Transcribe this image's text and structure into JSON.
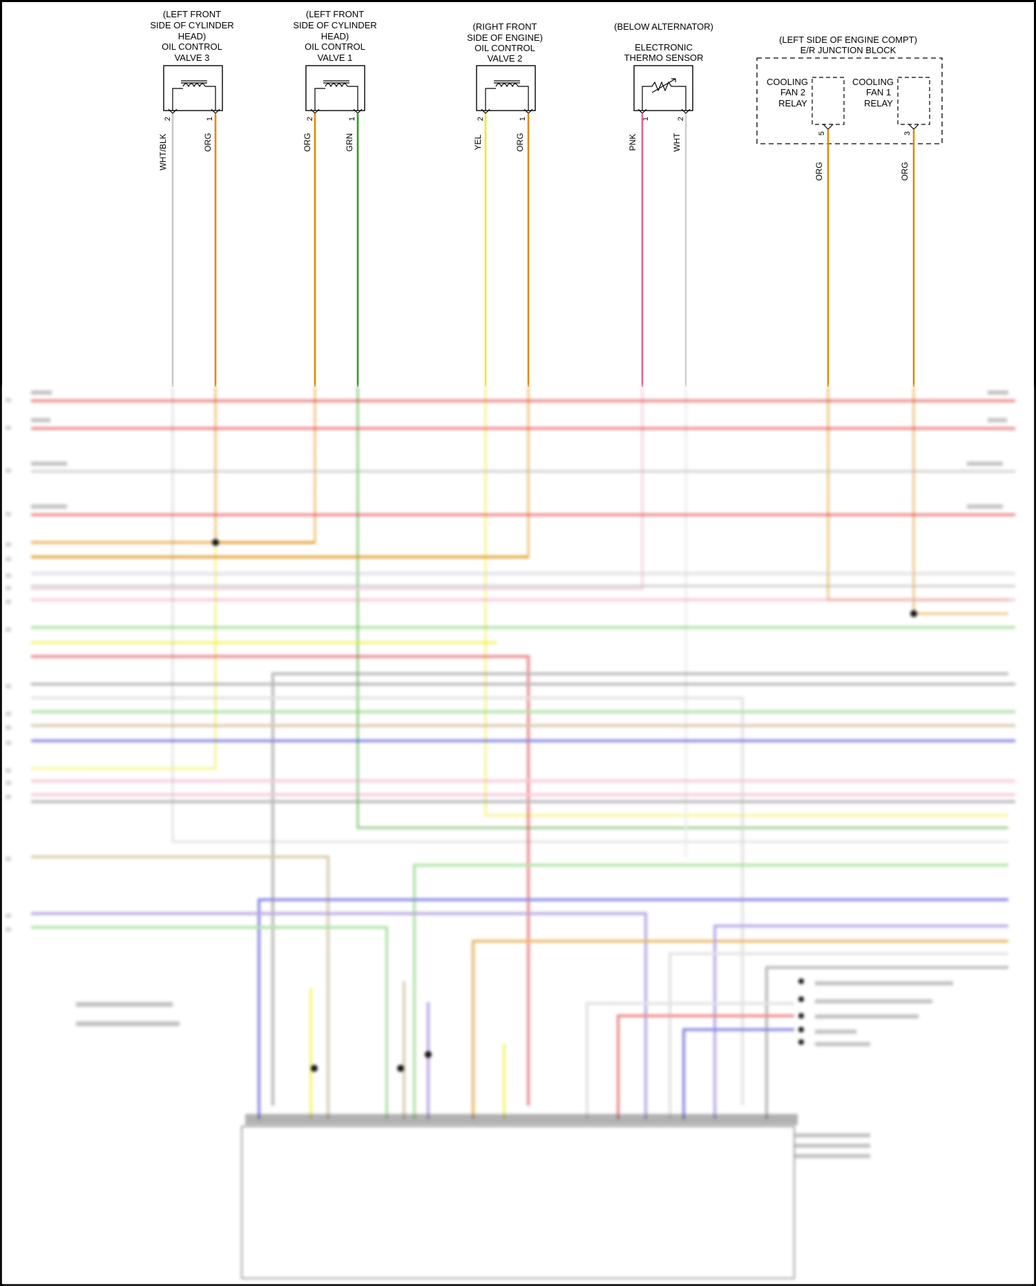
{
  "components": [
    {
      "id": "ocv3",
      "lines": [
        "(LEFT FRONT",
        "SIDE OF CYLINDER",
        "HEAD)",
        "OIL CONTROL",
        "VALVE 3"
      ],
      "pins": [
        {
          "pin": "2",
          "color": "WHT/BLK",
          "hex": "#c8c8c8"
        },
        {
          "pin": "1",
          "color": "ORG",
          "hex": "#e08a00"
        }
      ],
      "symbol": "solenoid-coil-icon"
    },
    {
      "id": "ocv1",
      "lines": [
        "(LEFT FRONT",
        "SIDE OF CYLINDER",
        "HEAD)",
        "OIL CONTROL",
        "VALVE 1"
      ],
      "pins": [
        {
          "pin": "2",
          "color": "ORG",
          "hex": "#e08a00"
        },
        {
          "pin": "1",
          "color": "GRN",
          "hex": "#2a9d1a"
        }
      ],
      "symbol": "solenoid-coil-icon"
    },
    {
      "id": "ocv2",
      "lines": [
        "(RIGHT FRONT",
        "SIDE OF ENGINE)",
        "OIL CONTROL",
        "VALVE 2"
      ],
      "pins": [
        {
          "pin": "2",
          "color": "YEL",
          "hex": "#f2ea1d"
        },
        {
          "pin": "1",
          "color": "ORG",
          "hex": "#e08a00"
        }
      ],
      "symbol": "solenoid-coil-icon"
    },
    {
      "id": "thermo",
      "lines": [
        "(BELOW ALTERNATOR)",
        "",
        "ELECTRONIC",
        "THERMO SENSOR"
      ],
      "pins": [
        {
          "pin": "1",
          "color": "PNK",
          "hex": "#e0609a"
        },
        {
          "pin": "2",
          "color": "WHT",
          "hex": "#cfcfcf"
        }
      ],
      "symbol": "thermistor-icon"
    }
  ],
  "junction_block": {
    "lines": [
      "(LEFT SIDE OF ENGINE COMPT)",
      "E/R JUNCTION BLOCK"
    ],
    "relays": [
      {
        "lines": [
          "COOLING",
          "FAN 2",
          "RELAY"
        ],
        "pin": "5",
        "color": "ORG",
        "hex": "#e08a00"
      },
      {
        "lines": [
          "COOLING",
          "FAN 1",
          "RELAY"
        ],
        "pin": "3",
        "color": "ORG",
        "hex": "#e08a00"
      }
    ]
  },
  "colors": {
    "red": "#e23b3b",
    "orange": "#e08a00",
    "yellow": "#f2ea1d",
    "green": "#2a9d1a",
    "light_green": "#7bd16b",
    "blue": "#3b3bd9",
    "violet": "#8a6fd6",
    "pink": "#f0a6c2",
    "gray": "#8a8a8a",
    "light_gray": "#cfcfcf",
    "tan": "#c2a77b"
  }
}
